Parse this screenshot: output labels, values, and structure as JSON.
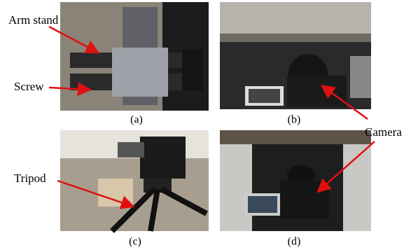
{
  "panels": [
    {
      "caption": "(a)"
    },
    {
      "caption": "(b)"
    },
    {
      "caption": "(c)"
    },
    {
      "caption": "(d)"
    }
  ],
  "annotations": [
    "Arm stand",
    "Screw",
    "Tripod",
    "Camera"
  ]
}
